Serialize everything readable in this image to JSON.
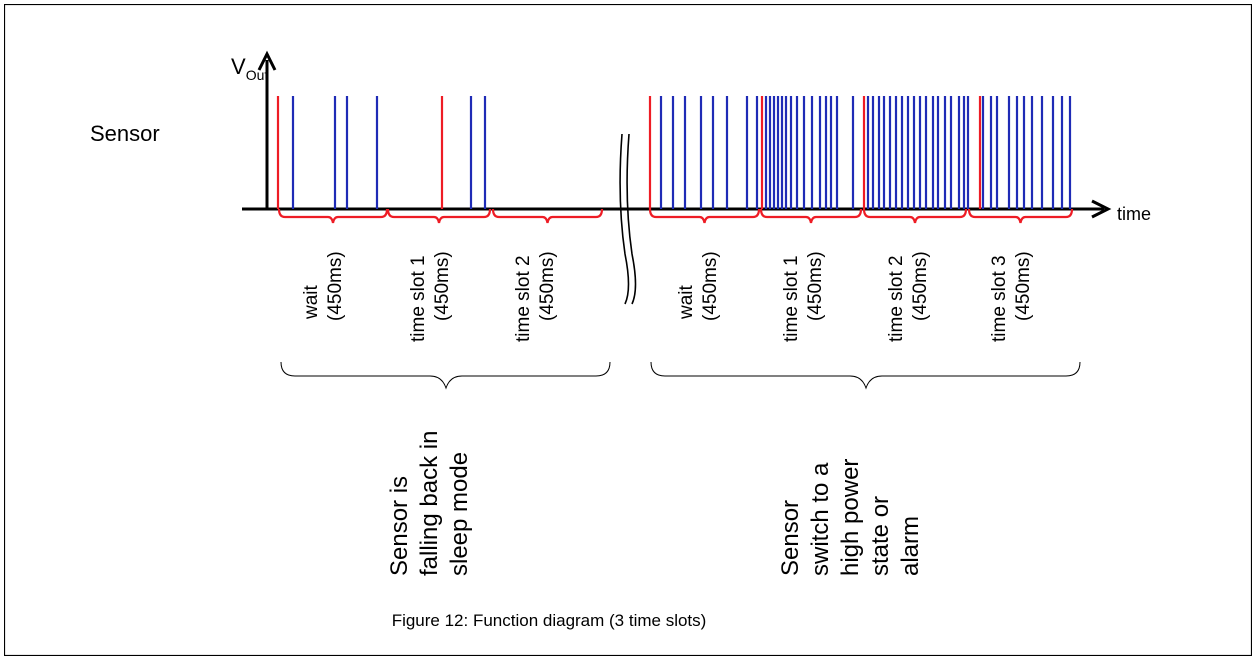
{
  "diagram": {
    "row_label": "Sensor",
    "y_axis_label": {
      "main": "V",
      "subscript": "Out"
    },
    "x_axis_label": "time",
    "colors": {
      "pulse_slot_start": "#ee1c25",
      "pulse_normal": "#1f2bb6",
      "bracket": "#ee1c25",
      "axis": "#000000"
    },
    "segments_left": [
      {
        "line1": "wait",
        "line2": "(450ms)"
      },
      {
        "line1": "time slot 1",
        "line2": "(450ms)"
      },
      {
        "line1": "time slot 2",
        "line2": "(450ms)"
      }
    ],
    "segments_right": [
      {
        "line1": "wait",
        "line2": "(450ms)"
      },
      {
        "line1": "time slot 1",
        "line2": "(450ms)"
      },
      {
        "line1": "time slot 2",
        "line2": "(450ms)"
      },
      {
        "line1": "time slot 3",
        "line2": "(450ms)"
      }
    ],
    "group_left": {
      "lines": [
        "Sensor is",
        "falling back in",
        "sleep mode"
      ]
    },
    "group_right": {
      "lines": [
        "Sensor",
        "switch to a",
        "high power",
        "state or",
        "alarm"
      ]
    },
    "caption": "Figure 12: Function diagram (3 time slots)"
  }
}
